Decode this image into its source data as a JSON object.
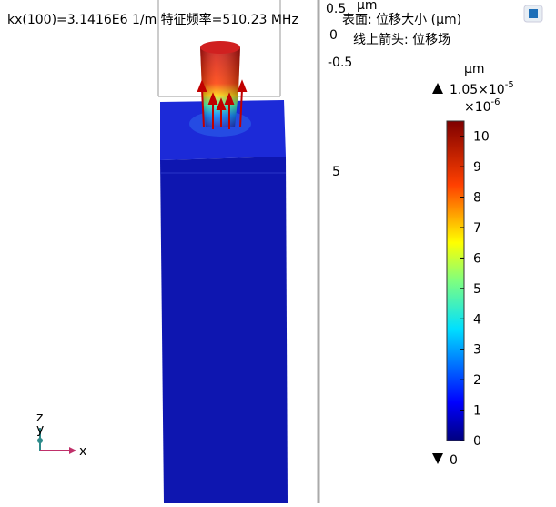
{
  "header": {
    "title": "kx(100)=3.1416E6 1/m 特征频率=510.23 MHz",
    "surface": "表面: 位移大小 (µm)",
    "arrows": "线上箭头: 位移场"
  },
  "axis_labels": {
    "unit": "µm",
    "labels": [
      "0.5",
      "0",
      "-0.5",
      "5"
    ]
  },
  "colorbar": {
    "unit": "µm",
    "max_mantissa": "1.05×10",
    "max_exponent": "-5",
    "multiplier_base": "×10",
    "multiplier_exponent": "-6",
    "min_label": "0",
    "lim": [
      0,
      10.5
    ],
    "ticks": [
      0,
      1,
      2,
      3,
      4,
      5,
      6,
      7,
      8,
      9,
      10
    ]
  },
  "triad": {
    "z": "z",
    "y": "y",
    "x": "x"
  }
}
